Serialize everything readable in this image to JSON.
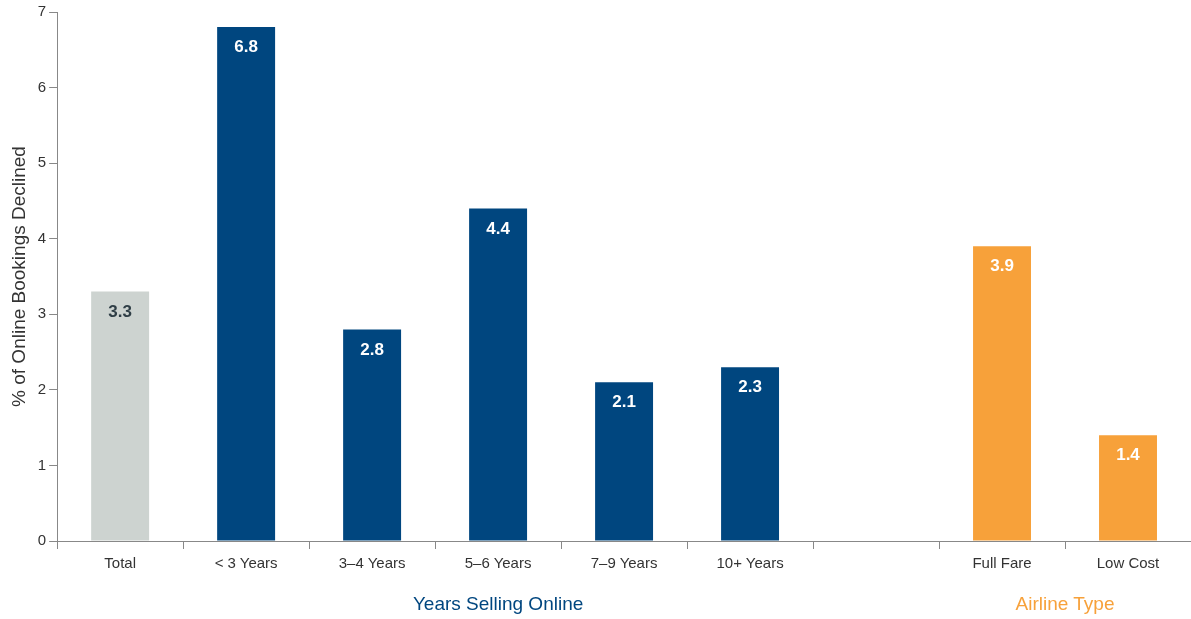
{
  "chart_data": {
    "type": "bar",
    "categories": [
      "Total",
      "< 3 Years",
      "3–4 Years",
      "5–6 Years",
      "7–9 Years",
      "10+ Years",
      null,
      "Full Fare",
      "Low Cost"
    ],
    "values": [
      3.3,
      6.8,
      2.8,
      4.4,
      2.1,
      2.3,
      null,
      3.9,
      1.4
    ],
    "colors": [
      "#cdd3d0",
      "#00467f",
      "#00467f",
      "#00467f",
      "#00467f",
      "#00467f",
      "#00467f",
      "#f7a13a",
      "#f7a13a"
    ],
    "ylabel": "% of Online Bookings Declined",
    "ylim": [
      0,
      7
    ],
    "yticks": [
      0,
      1,
      2,
      3,
      4,
      5,
      6,
      7
    ],
    "grid": false,
    "legend": false,
    "data_labels": true,
    "annotations": [
      "Years Selling Online",
      "Airline Type"
    ]
  }
}
